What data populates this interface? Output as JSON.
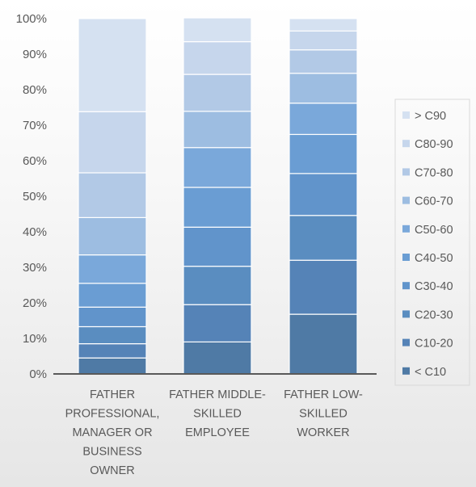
{
  "chart_data": {
    "type": "bar",
    "stacked": true,
    "percent": true,
    "categories": [
      [
        "FATHER",
        "PROFESSIONAL,",
        "MANAGER OR",
        "BUSINESS",
        "OWNER"
      ],
      [
        "FATHER MIDDLE-",
        "SKILLED",
        "EMPLOYEE"
      ],
      [
        "FATHER LOW-",
        "SKILLED",
        "WORKER"
      ]
    ],
    "series": [
      {
        "name": "< C10",
        "color": "#4f7aa5",
        "values": [
          4.5,
          9.0,
          16.8
        ]
      },
      {
        "name": "C10-20",
        "color": "#5583b7",
        "values": [
          4.0,
          10.5,
          15.2
        ]
      },
      {
        "name": "C20-30",
        "color": "#5a8dc0",
        "values": [
          4.8,
          10.8,
          12.6
        ]
      },
      {
        "name": "C30-40",
        "color": "#6194cb",
        "values": [
          5.5,
          11.0,
          11.8
        ]
      },
      {
        "name": "C40-50",
        "color": "#6a9dd3",
        "values": [
          6.7,
          11.2,
          11.0
        ]
      },
      {
        "name": "C50-60",
        "color": "#7aa8da",
        "values": [
          8.0,
          11.2,
          8.8
        ]
      },
      {
        "name": "C60-70",
        "color": "#9dbde1",
        "values": [
          10.5,
          10.2,
          8.4
        ]
      },
      {
        "name": "C70-80",
        "color": "#b2c9e6",
        "values": [
          12.6,
          10.4,
          6.6
        ]
      },
      {
        "name": "C80-90",
        "color": "#c6d6ec",
        "values": [
          17.2,
          9.2,
          5.3
        ]
      },
      {
        "name": "> C90",
        "color": "#d5e1f1",
        "values": [
          26.2,
          6.7,
          3.5
        ]
      }
    ],
    "y_ticks": [
      "0%",
      "10%",
      "20%",
      "30%",
      "40%",
      "50%",
      "60%",
      "70%",
      "80%",
      "90%",
      "100%"
    ],
    "ylim": [
      0,
      100
    ],
    "grid": false,
    "legend_position": "right",
    "axis_color": "#595959",
    "segment_border_color": "#ffffff",
    "legend_box_color": "#d9d9d9"
  }
}
